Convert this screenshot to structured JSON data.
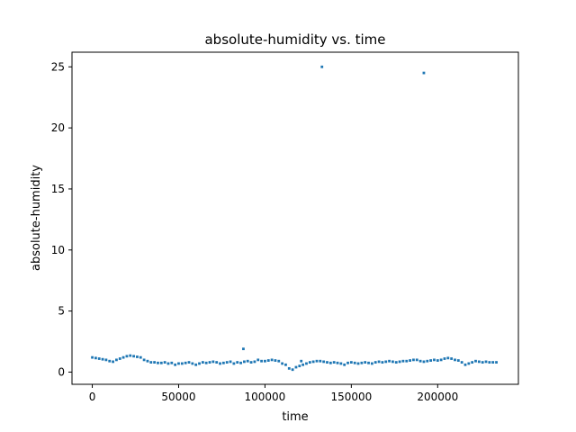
{
  "chart_data": {
    "type": "scatter",
    "title": "absolute-humidity vs. time",
    "xlabel": "time",
    "ylabel": "absolute-humidity",
    "xlim": [
      -11750,
      246750
    ],
    "ylim": [
      -1.0,
      26.2
    ],
    "x_ticks": [
      0,
      50000,
      100000,
      150000,
      200000
    ],
    "x_tick_labels": [
      "0",
      "50000",
      "100000",
      "150000",
      "200000"
    ],
    "y_ticks": [
      0,
      5,
      10,
      15,
      20,
      25
    ],
    "y_tick_labels": [
      "0",
      "5",
      "10",
      "15",
      "20",
      "25"
    ],
    "grid": false,
    "marker_color": "#1f77b4",
    "series": [
      {
        "x": [
          0,
          2000,
          4000,
          6000,
          8000,
          10000,
          12000,
          14000,
          16000,
          18000,
          20000,
          22000,
          24000,
          26000,
          28000,
          30000,
          32000,
          34000,
          36000,
          38000,
          40000,
          42000,
          44000,
          46000,
          48000,
          50000,
          52000,
          54000,
          56000,
          58000,
          60000,
          62000,
          64000,
          66000,
          68000,
          70000,
          72000,
          74000,
          76000,
          78000,
          80000,
          82000,
          84000,
          86000,
          88000,
          90000,
          92000,
          94000,
          96000,
          98000,
          100000,
          102000,
          104000,
          106000,
          108000,
          110000,
          112000,
          114000,
          116000,
          118000,
          120000,
          122000,
          124000,
          126000,
          128000,
          130000,
          132000,
          134000,
          136000,
          138000,
          140000,
          142000,
          144000,
          146000,
          148000,
          150000,
          152000,
          154000,
          156000,
          158000,
          160000,
          162000,
          164000,
          166000,
          168000,
          170000,
          172000,
          174000,
          176000,
          178000,
          180000,
          182000,
          184000,
          186000,
          188000,
          190000,
          192000,
          194000,
          196000,
          198000,
          200000,
          202000,
          204000,
          206000,
          208000,
          210000,
          212000,
          214000,
          216000,
          218000,
          220000,
          222000,
          224000,
          226000,
          228000,
          230000,
          232000,
          234000,
          87500,
          121000,
          133000,
          192000
        ],
        "y": [
          1.2,
          1.15,
          1.1,
          1.05,
          1.0,
          0.9,
          0.85,
          1.0,
          1.1,
          1.2,
          1.3,
          1.35,
          1.3,
          1.25,
          1.2,
          1.0,
          0.9,
          0.8,
          0.8,
          0.75,
          0.75,
          0.8,
          0.7,
          0.75,
          0.6,
          0.7,
          0.7,
          0.75,
          0.8,
          0.7,
          0.6,
          0.7,
          0.8,
          0.75,
          0.8,
          0.85,
          0.8,
          0.7,
          0.75,
          0.8,
          0.85,
          0.7,
          0.8,
          0.75,
          0.85,
          0.9,
          0.8,
          0.85,
          1.0,
          0.9,
          0.9,
          0.95,
          1.0,
          0.95,
          0.9,
          0.7,
          0.6,
          0.3,
          0.2,
          0.4,
          0.5,
          0.6,
          0.7,
          0.8,
          0.85,
          0.9,
          0.9,
          0.85,
          0.8,
          0.75,
          0.8,
          0.75,
          0.7,
          0.6,
          0.75,
          0.8,
          0.75,
          0.7,
          0.75,
          0.8,
          0.75,
          0.7,
          0.8,
          0.85,
          0.8,
          0.85,
          0.9,
          0.85,
          0.8,
          0.85,
          0.9,
          0.9,
          0.95,
          1.0,
          1.0,
          0.9,
          0.85,
          0.9,
          0.95,
          1.0,
          0.95,
          1.0,
          1.1,
          1.15,
          1.1,
          1.0,
          0.95,
          0.8,
          0.6,
          0.7,
          0.8,
          0.9,
          0.85,
          0.8,
          0.85,
          0.8,
          0.8,
          0.8,
          1.9,
          0.9,
          25.0,
          24.5
        ]
      }
    ]
  }
}
